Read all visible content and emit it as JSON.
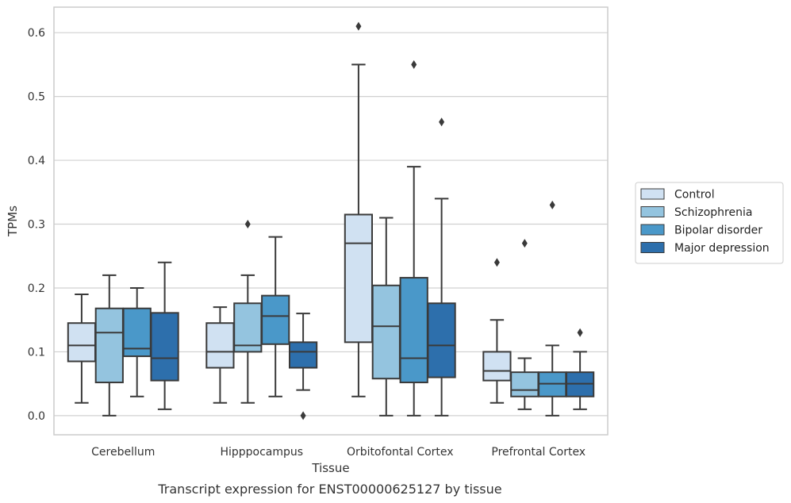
{
  "caption": "Transcript expression for ENST00000625127 by tissue",
  "chart_data": {
    "type": "box",
    "xlabel": "Tissue",
    "ylabel": "TPMs",
    "ylim": [
      -0.03,
      0.64
    ],
    "yticks": [
      0.0,
      0.1,
      0.2,
      0.3,
      0.4,
      0.5,
      0.6
    ],
    "ytick_labels": [
      "0.0",
      "0.1",
      "0.2",
      "0.3",
      "0.4",
      "0.5",
      "0.6"
    ],
    "grid": "horizontal",
    "legend_position": "right",
    "categories": [
      "Cerebellum",
      "Hipppocampus",
      "Orbitofontal Cortex",
      "Prefrontal Cortex"
    ],
    "series": [
      {
        "name": "Control",
        "color": "#d0e1f2",
        "boxes": [
          {
            "whisker_low": 0.02,
            "q1": 0.085,
            "median": 0.11,
            "q3": 0.145,
            "whisker_high": 0.19,
            "outliers": []
          },
          {
            "whisker_low": 0.02,
            "q1": 0.075,
            "median": 0.1,
            "q3": 0.145,
            "whisker_high": 0.17,
            "outliers": []
          },
          {
            "whisker_low": 0.03,
            "q1": 0.115,
            "median": 0.27,
            "q3": 0.315,
            "whisker_high": 0.55,
            "outliers": [
              0.61
            ]
          },
          {
            "whisker_low": 0.02,
            "q1": 0.055,
            "median": 0.07,
            "q3": 0.1,
            "whisker_high": 0.15,
            "outliers": [
              0.24
            ]
          }
        ]
      },
      {
        "name": "Schizophrenia",
        "color": "#94c4df",
        "boxes": [
          {
            "whisker_low": 0.0,
            "q1": 0.052,
            "median": 0.13,
            "q3": 0.168,
            "whisker_high": 0.22,
            "outliers": []
          },
          {
            "whisker_low": 0.02,
            "q1": 0.1,
            "median": 0.11,
            "q3": 0.176,
            "whisker_high": 0.22,
            "outliers": [
              0.3
            ]
          },
          {
            "whisker_low": 0.0,
            "q1": 0.058,
            "median": 0.14,
            "q3": 0.204,
            "whisker_high": 0.31,
            "outliers": []
          },
          {
            "whisker_low": 0.01,
            "q1": 0.03,
            "median": 0.04,
            "q3": 0.068,
            "whisker_high": 0.09,
            "outliers": [
              0.27
            ]
          }
        ]
      },
      {
        "name": "Bipolar disorder",
        "color": "#4a98c9",
        "boxes": [
          {
            "whisker_low": 0.03,
            "q1": 0.093,
            "median": 0.105,
            "q3": 0.168,
            "whisker_high": 0.2,
            "outliers": []
          },
          {
            "whisker_low": 0.03,
            "q1": 0.112,
            "median": 0.156,
            "q3": 0.188,
            "whisker_high": 0.28,
            "outliers": []
          },
          {
            "whisker_low": 0.0,
            "q1": 0.052,
            "median": 0.09,
            "q3": 0.216,
            "whisker_high": 0.39,
            "outliers": [
              0.55
            ]
          },
          {
            "whisker_low": 0.0,
            "q1": 0.03,
            "median": 0.05,
            "q3": 0.068,
            "whisker_high": 0.11,
            "outliers": [
              0.33
            ]
          }
        ]
      },
      {
        "name": "Major depression",
        "color": "#2d6fac",
        "boxes": [
          {
            "whisker_low": 0.01,
            "q1": 0.055,
            "median": 0.09,
            "q3": 0.161,
            "whisker_high": 0.24,
            "outliers": []
          },
          {
            "whisker_low": 0.04,
            "q1": 0.075,
            "median": 0.1,
            "q3": 0.115,
            "whisker_high": 0.16,
            "outliers": [
              0.0
            ]
          },
          {
            "whisker_low": 0.0,
            "q1": 0.06,
            "median": 0.11,
            "q3": 0.176,
            "whisker_high": 0.34,
            "outliers": [
              0.46
            ]
          },
          {
            "whisker_low": 0.01,
            "q1": 0.03,
            "median": 0.05,
            "q3": 0.068,
            "whisker_high": 0.1,
            "outliers": [
              0.13
            ]
          }
        ]
      }
    ]
  }
}
